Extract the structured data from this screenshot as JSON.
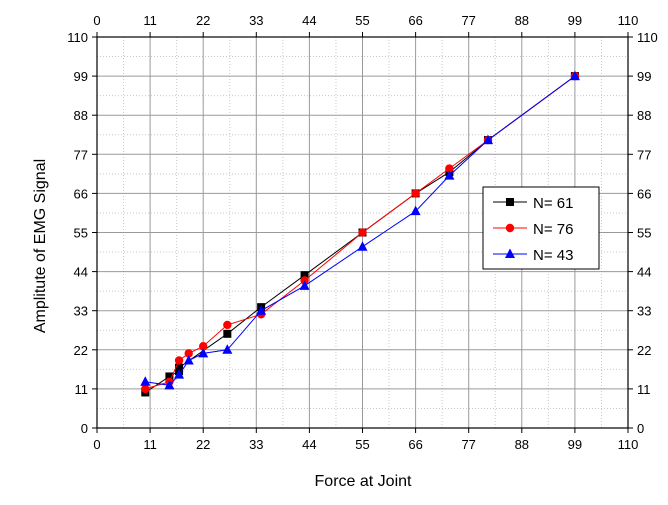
{
  "chart_data": {
    "type": "line",
    "xlabel": "Force at Joint",
    "ylabel": "Amplitute of EMG Signal",
    "xlim": [
      0,
      110
    ],
    "ylim": [
      0,
      110
    ],
    "x_ticks": [
      0,
      11,
      22,
      33,
      44,
      55,
      66,
      77,
      88,
      99,
      110
    ],
    "y_ticks": [
      0,
      11,
      22,
      33,
      44,
      55,
      66,
      77,
      88,
      99,
      110
    ],
    "x_tick_labels": [
      "0",
      "11",
      "22",
      "33",
      "44",
      "55",
      "66",
      "77",
      "88",
      "99",
      "110"
    ],
    "y_tick_labels": [
      "0",
      "11",
      "22",
      "33",
      "44",
      "55",
      "66",
      "77",
      "88",
      "99",
      "110"
    ],
    "grid": {
      "major": true,
      "minor": true
    },
    "legend_position": "right",
    "series": [
      {
        "name": "N= 61",
        "marker": "square",
        "color": "#000000",
        "points": [
          [
            10,
            10
          ],
          [
            15,
            14.5
          ],
          [
            17,
            16
          ],
          [
            17,
            17
          ],
          [
            27,
            26.5
          ],
          [
            34,
            34
          ],
          [
            43,
            43
          ],
          [
            55,
            55
          ],
          [
            66,
            66
          ],
          [
            73,
            72
          ],
          [
            81,
            81
          ],
          [
            99,
            99
          ]
        ]
      },
      {
        "name": "N= 76",
        "marker": "circle",
        "color": "#ff0000",
        "points": [
          [
            10,
            11
          ],
          [
            15,
            13
          ],
          [
            17,
            19
          ],
          [
            19,
            21
          ],
          [
            22,
            23
          ],
          [
            27,
            29
          ],
          [
            34,
            32
          ],
          [
            43,
            41.5
          ],
          [
            55,
            55
          ],
          [
            66,
            66
          ],
          [
            73,
            73
          ],
          [
            81,
            81
          ],
          [
            99,
            99
          ]
        ]
      },
      {
        "name": "N= 43",
        "marker": "triangle",
        "color": "#0000ff",
        "points": [
          [
            10,
            13
          ],
          [
            15,
            12
          ],
          [
            17,
            15
          ],
          [
            19,
            19
          ],
          [
            22,
            21
          ],
          [
            27,
            22
          ],
          [
            34,
            33
          ],
          [
            43,
            40
          ],
          [
            55,
            51
          ],
          [
            66,
            61
          ],
          [
            73,
            71
          ],
          [
            81,
            81
          ],
          [
            99,
            99
          ]
        ]
      }
    ]
  }
}
